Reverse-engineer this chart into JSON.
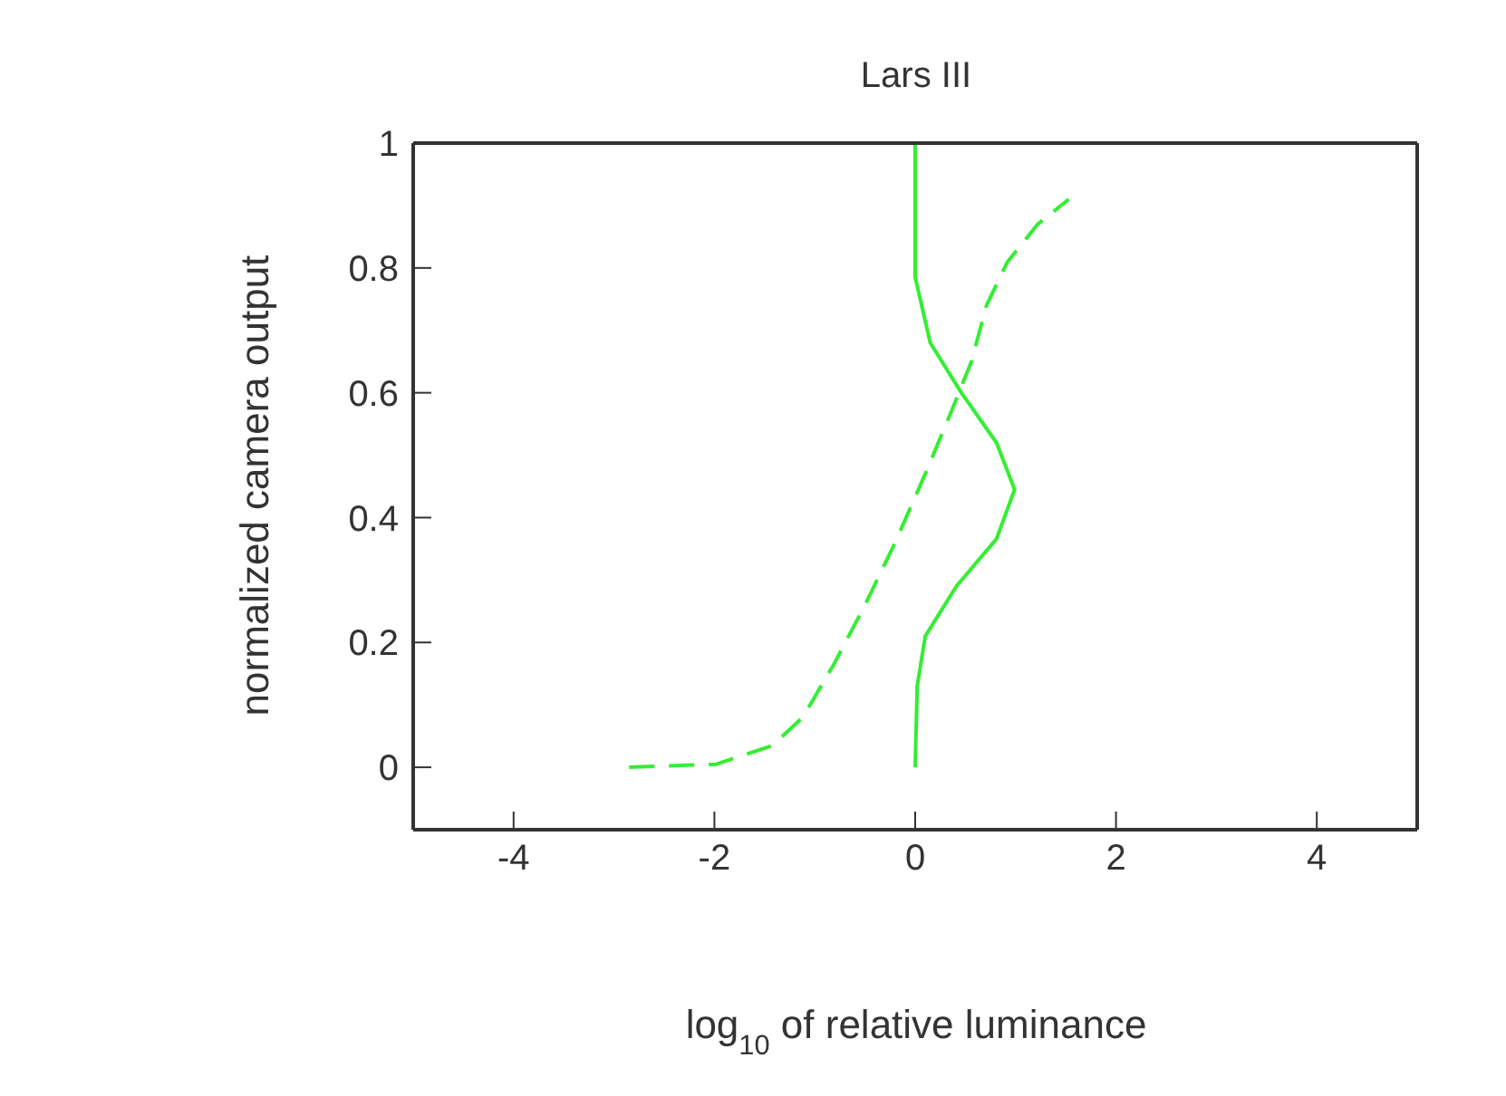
{
  "chart_data": {
    "type": "line",
    "title": "Lars III",
    "xlabel": "log$_{10}$ of relative luminance",
    "ylabel": "normalized camera output",
    "xlim": [
      -5,
      5
    ],
    "xticks": [
      -4,
      -2,
      0,
      2,
      4
    ],
    "ylim": [
      -0.1,
      1
    ],
    "yticks": [
      0,
      0.2,
      0.4,
      0.6,
      0.8,
      1
    ],
    "legend": false,
    "marker": "none",
    "series": [
      {
        "color": "#33ee33",
        "line_style": "solid",
        "x": [
          0,
          0,
          0.15,
          0.46,
          0.81,
          0.99,
          0.81,
          0.41,
          0.1,
          0.02,
          0
        ],
        "values": [
          1,
          0.785,
          0.68,
          0.6,
          0.52,
          0.445,
          0.366,
          0.29,
          0.21,
          0.13,
          0
        ]
      },
      {
        "color": "#33ee33",
        "line_style": "dashed",
        "x": [
          -2.85,
          -1.98,
          -1.42,
          -1.12,
          -0.81,
          -0.5,
          -0.2,
          0.1,
          0.36,
          0.56,
          0.71,
          0.92,
          1.22,
          1.53
        ],
        "values": [
          0,
          0.005,
          0.035,
          0.08,
          0.165,
          0.26,
          0.36,
          0.47,
          0.57,
          0.65,
          0.74,
          0.81,
          0.87,
          0.91
        ]
      }
    ]
  }
}
